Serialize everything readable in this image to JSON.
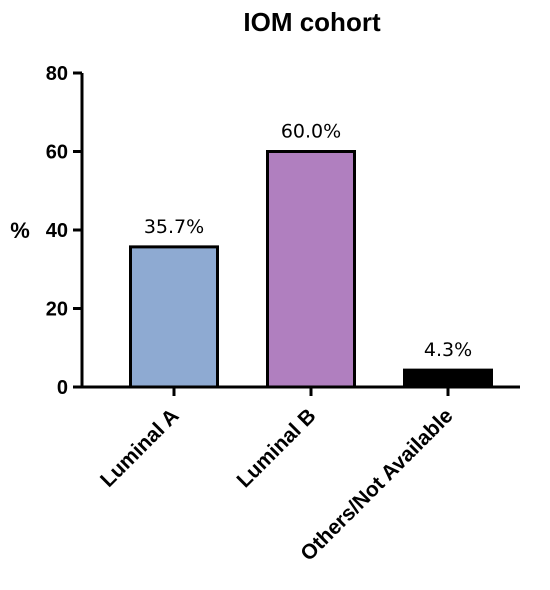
{
  "chart_data": {
    "type": "bar",
    "title": "IOM cohort",
    "ylabel": "%",
    "ylim": [
      0,
      80
    ],
    "yticks": [
      0,
      20,
      40,
      60,
      80
    ],
    "categories": [
      "Luminal A",
      "Luminal B",
      "Others/Not Available"
    ],
    "values": [
      35.7,
      60.0,
      4.3
    ],
    "data_labels": [
      "35.7%",
      "60.0%",
      "4.3%"
    ],
    "colors": [
      "#8eaad2",
      "#b07fbf",
      "#000000"
    ],
    "grid": false,
    "legend": "none"
  }
}
